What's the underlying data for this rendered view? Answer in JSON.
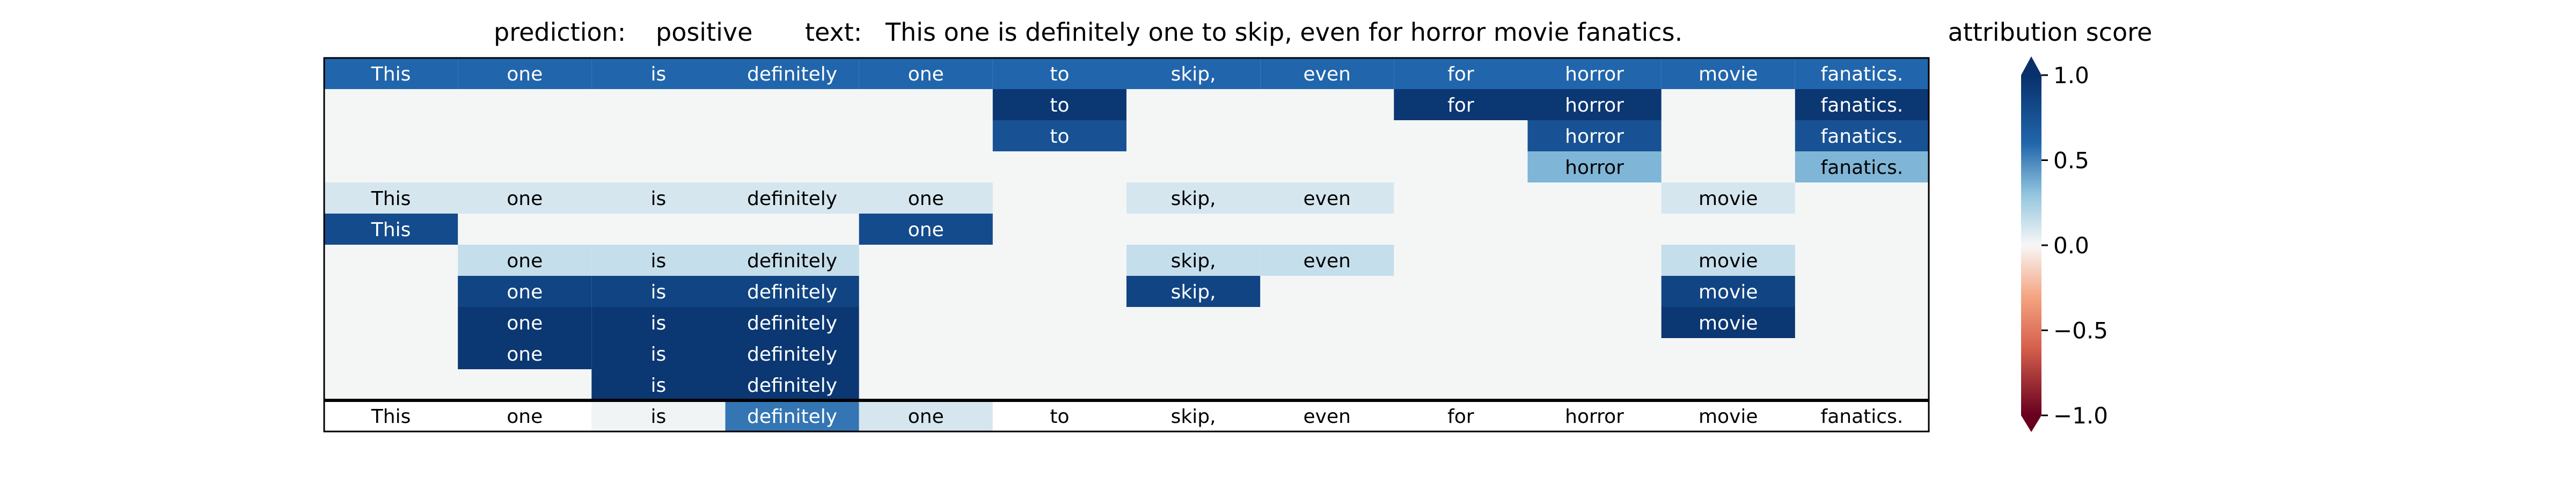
{
  "header": {
    "prediction_label": "prediction:",
    "prediction_value": "positive",
    "text_label": "text:",
    "text_value": "This one is definitely one to skip, even for horror movie fanatics."
  },
  "colorbar": {
    "title": "attribution score",
    "ticks": [
      "1.0",
      "0.5",
      "0.0",
      "−0.5",
      "−1.0"
    ]
  },
  "chart_data": {
    "type": "heatmap",
    "title": "prediction:  positive     text:  This one is definitely one to skip, even for horror movie fanatics.",
    "tokens": [
      "This",
      "one",
      "is",
      "definitely",
      "one",
      "to",
      "skip,",
      "even",
      "for",
      "horror",
      "movie",
      "fanatics."
    ],
    "colorbar_label": "attribution score",
    "vmin": -1.0,
    "vmax": 1.0,
    "colormap": "RdBu",
    "rows": [
      [
        0.6,
        0.6,
        0.6,
        0.6,
        0.6,
        0.6,
        0.6,
        0.6,
        0.6,
        0.6,
        0.6,
        0.6
      ],
      [
        null,
        null,
        null,
        null,
        null,
        0.95,
        null,
        null,
        0.95,
        0.95,
        null,
        0.95
      ],
      [
        null,
        null,
        null,
        null,
        null,
        0.75,
        null,
        null,
        null,
        0.75,
        null,
        0.75
      ],
      [
        null,
        null,
        null,
        null,
        null,
        null,
        null,
        null,
        null,
        0.35,
        null,
        0.35
      ],
      [
        0.1,
        0.1,
        0.1,
        0.1,
        0.1,
        null,
        0.1,
        0.1,
        null,
        null,
        0.1,
        null
      ],
      [
        0.8,
        null,
        null,
        null,
        0.8,
        null,
        null,
        null,
        null,
        null,
        null,
        null
      ],
      [
        null,
        0.15,
        0.15,
        0.15,
        null,
        null,
        0.15,
        0.15,
        null,
        null,
        0.15,
        null
      ],
      [
        null,
        0.85,
        0.85,
        0.85,
        null,
        null,
        0.85,
        null,
        null,
        null,
        0.85,
        null
      ],
      [
        null,
        0.95,
        0.95,
        0.95,
        null,
        null,
        null,
        null,
        null,
        null,
        0.95,
        null
      ],
      [
        null,
        0.95,
        0.95,
        0.95,
        null,
        null,
        null,
        null,
        null,
        null,
        null,
        null
      ],
      [
        null,
        null,
        0.95,
        0.95,
        null,
        null,
        null,
        null,
        null,
        null,
        null,
        null
      ]
    ],
    "summary_row": [
      0.0,
      0.0,
      0.02,
      0.55,
      0.1,
      0.0,
      0.0,
      0.0,
      0.0,
      0.0,
      0.0,
      0.0
    ]
  }
}
